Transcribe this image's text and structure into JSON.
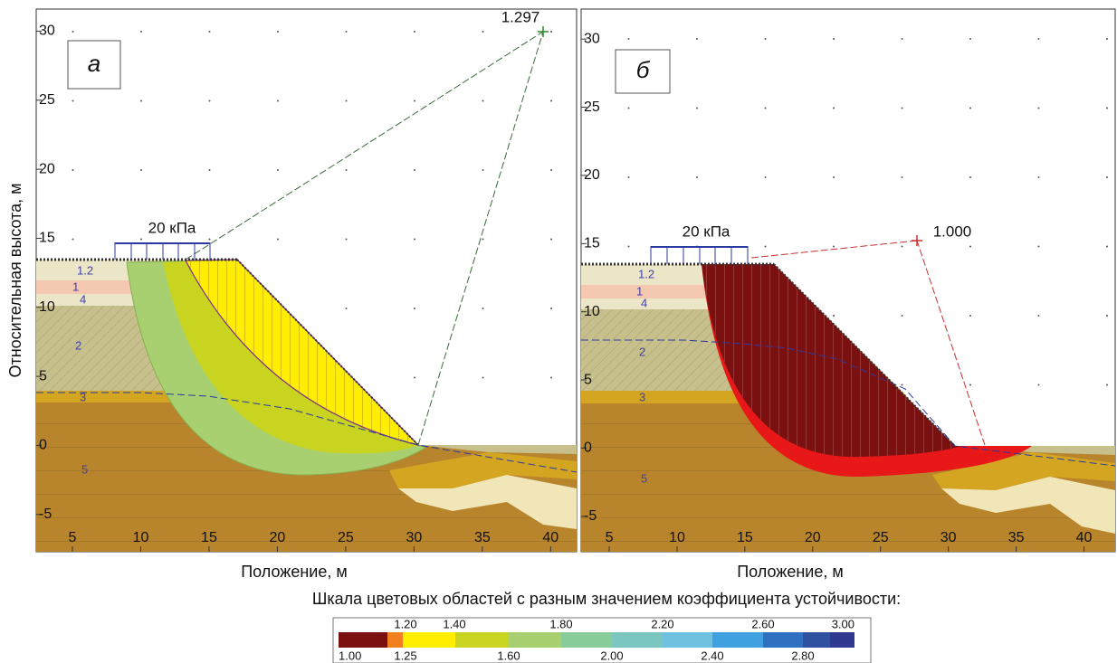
{
  "y_axis_title": "Относительная высота, м",
  "panels": [
    {
      "label": "а",
      "x_axis_title": "Положение, м",
      "xlim": [
        2.35,
        41.9
      ],
      "ylim": [
        -7.7,
        31.6
      ],
      "xticks": [
        5,
        10,
        15,
        20,
        25,
        30,
        35,
        40
      ],
      "yticks": [
        -5,
        0,
        5,
        10,
        15,
        20,
        25,
        30
      ],
      "load_label": "20 кПа",
      "factor": "1.297",
      "layer_labels": [
        "1.2",
        "1",
        "4",
        "2",
        "3",
        "5"
      ]
    },
    {
      "label": "б",
      "x_axis_title": "Положение, м",
      "xlim": [
        2.93,
        42.3
      ],
      "ylim": [
        -7.6,
        32.2
      ],
      "xticks": [
        5,
        10,
        15,
        20,
        25,
        30,
        35,
        40
      ],
      "yticks": [
        -5,
        0,
        5,
        10,
        15,
        20,
        25,
        30
      ],
      "load_label": "20 кПа",
      "factor": "1.000",
      "layer_labels": [
        "1.2",
        "1",
        "4",
        "2",
        "3",
        "5"
      ]
    }
  ],
  "legend": {
    "title": "Шкала цветовых областей с разным значением коэффициента устойчивости:",
    "upper_labels": [
      "1.20",
      "1.40",
      "1.80",
      "2.20",
      "2.60",
      "3.00"
    ],
    "lower_labels": [
      "1.00",
      "1.25",
      "1.60",
      "2.00",
      "2.40",
      "2.80"
    ],
    "colors": [
      "#7b1010",
      "#f08020",
      "#ffee00",
      "#c8d420",
      "#a8d070",
      "#88cc99",
      "#7cc6c0",
      "#70c0e0",
      "#40a0e0",
      "#3070c0",
      "#3050a0",
      "#303890"
    ]
  }
}
